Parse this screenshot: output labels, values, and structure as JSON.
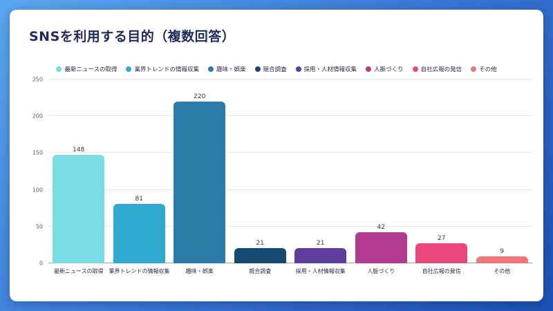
{
  "page": {
    "title": "SNSを利用する目的（複数回答）"
  },
  "chart_data": {
    "type": "bar",
    "title": "SNSを利用する目的（複数回答）",
    "categories": [
      "最新ニュースの取得",
      "業界トレンドの情報収集",
      "趣味・娯楽",
      "競合調査",
      "採用・人材情報収集",
      "人脈づくり",
      "自社広報の発信",
      "その他"
    ],
    "values": [
      148,
      81,
      220,
      21,
      21,
      42,
      27,
      9
    ],
    "colors": [
      "#7adde3",
      "#2fa9ce",
      "#2b7ca8",
      "#174a73",
      "#5f3d9c",
      "#b23c92",
      "#e9477e",
      "#ef7779"
    ],
    "xlabel": "",
    "ylabel": "",
    "ylim": [
      0,
      250
    ],
    "yticks": [
      0,
      50,
      100,
      150,
      200,
      250
    ],
    "grid": true,
    "legend_position": "top",
    "card_background": "#ffffff",
    "page_background_top": "#5aa7ef",
    "page_background_bottom": "#1b51b3"
  }
}
